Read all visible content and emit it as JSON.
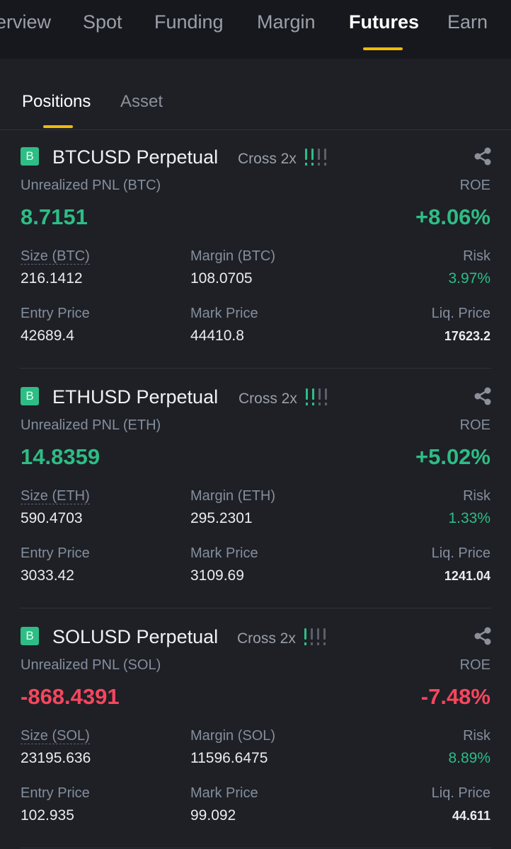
{
  "nav": {
    "tabs": [
      {
        "label": "erview"
      },
      {
        "label": "Spot"
      },
      {
        "label": "Funding"
      },
      {
        "label": "Margin"
      },
      {
        "label": "Futures"
      },
      {
        "label": "Earn"
      }
    ],
    "active": "Futures"
  },
  "subtabs": {
    "items": [
      {
        "label": "Positions"
      },
      {
        "label": "Asset"
      }
    ],
    "active": "Positions"
  },
  "colors": {
    "accent": "#f0b90b",
    "positive": "#2ebd85",
    "negative": "#f6465d",
    "background": "#1e2026"
  },
  "positions": [
    {
      "badge": "B",
      "symbol": "BTCUSD Perpetual",
      "leverage": "Cross 2x",
      "risk_level_bars": 2,
      "pnl_label": "Unrealized PNL (BTC)",
      "pnl": "8.7151",
      "roe_label": "ROE",
      "roe": "+8.06%",
      "size_label": "Size (BTC)",
      "size": "216.1412",
      "margin_label": "Margin (BTC)",
      "margin": "108.0705",
      "risk_label": "Risk",
      "risk": "3.97%",
      "entry_label": "Entry Price",
      "entry": "42689.4",
      "mark_label": "Mark Price",
      "mark": "44410.8",
      "liq_label": "Liq. Price",
      "liq": "17623.2",
      "sentiment": "positive"
    },
    {
      "badge": "B",
      "symbol": "ETHUSD Perpetual",
      "leverage": "Cross 2x",
      "risk_level_bars": 2,
      "pnl_label": "Unrealized PNL (ETH)",
      "pnl": "14.8359",
      "roe_label": "ROE",
      "roe": "+5.02%",
      "size_label": "Size (ETH)",
      "size": "590.4703",
      "margin_label": "Margin (ETH)",
      "margin": "295.2301",
      "risk_label": "Risk",
      "risk": "1.33%",
      "entry_label": "Entry Price",
      "entry": "3033.42",
      "mark_label": "Mark Price",
      "mark": "3109.69",
      "liq_label": "Liq. Price",
      "liq": "1241.04",
      "sentiment": "positive"
    },
    {
      "badge": "B",
      "symbol": "SOLUSD Perpetual",
      "leverage": "Cross 2x",
      "risk_level_bars": 1,
      "pnl_label": "Unrealized PNL (SOL)",
      "pnl": "-868.4391",
      "roe_label": "ROE",
      "roe": "-7.48%",
      "size_label": "Size (SOL)",
      "size": "23195.636",
      "margin_label": "Margin (SOL)",
      "margin": "11596.6475",
      "risk_label": "Risk",
      "risk": "8.89%",
      "entry_label": "Entry Price",
      "entry": "102.935",
      "mark_label": "Mark Price",
      "mark": "99.092",
      "liq_label": "Liq. Price",
      "liq": "44.611",
      "sentiment": "negative"
    }
  ]
}
